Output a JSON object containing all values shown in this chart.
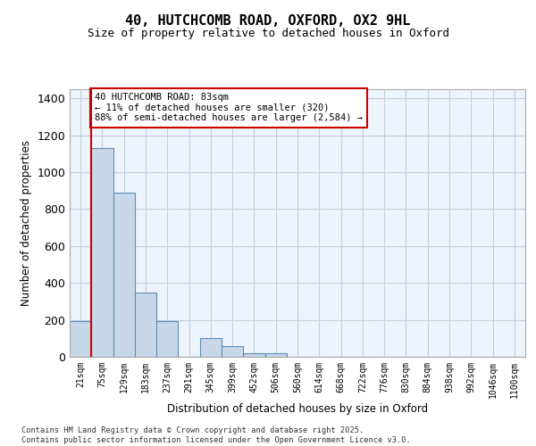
{
  "title_line1": "40, HUTCHCOMB ROAD, OXFORD, OX2 9HL",
  "title_line2": "Size of property relative to detached houses in Oxford",
  "xlabel": "Distribution of detached houses by size in Oxford",
  "ylabel": "Number of detached properties",
  "bin_labels": [
    "21sqm",
    "75sqm",
    "129sqm",
    "183sqm",
    "237sqm",
    "291sqm",
    "345sqm",
    "399sqm",
    "452sqm",
    "506sqm",
    "560sqm",
    "614sqm",
    "668sqm",
    "722sqm",
    "776sqm",
    "830sqm",
    "884sqm",
    "938sqm",
    "992sqm",
    "1046sqm",
    "1100sqm"
  ],
  "bar_heights": [
    195,
    1130,
    890,
    350,
    195,
    0,
    100,
    60,
    20,
    20,
    0,
    0,
    0,
    0,
    0,
    0,
    0,
    0,
    0,
    0,
    0
  ],
  "bar_color": "#c8d8e8",
  "bar_edge_color": "#5b8db8",
  "grid_color": "#c0cfe0",
  "background_color": "#eef4fb",
  "red_line_bin_index": 1,
  "annotation_text": "40 HUTCHCOMB ROAD: 83sqm\n← 11% of detached houses are smaller (320)\n88% of semi-detached houses are larger (2,584) →",
  "annotation_box_color": "#ffffff",
  "annotation_edge_color": "#cc0000",
  "annotation_text_color": "#000000",
  "ylim": [
    0,
    1450
  ],
  "yticks": [
    0,
    200,
    400,
    600,
    800,
    1000,
    1200,
    1400
  ],
  "footer_line1": "Contains HM Land Registry data © Crown copyright and database right 2025.",
  "footer_line2": "Contains public sector information licensed under the Open Government Licence v3.0."
}
